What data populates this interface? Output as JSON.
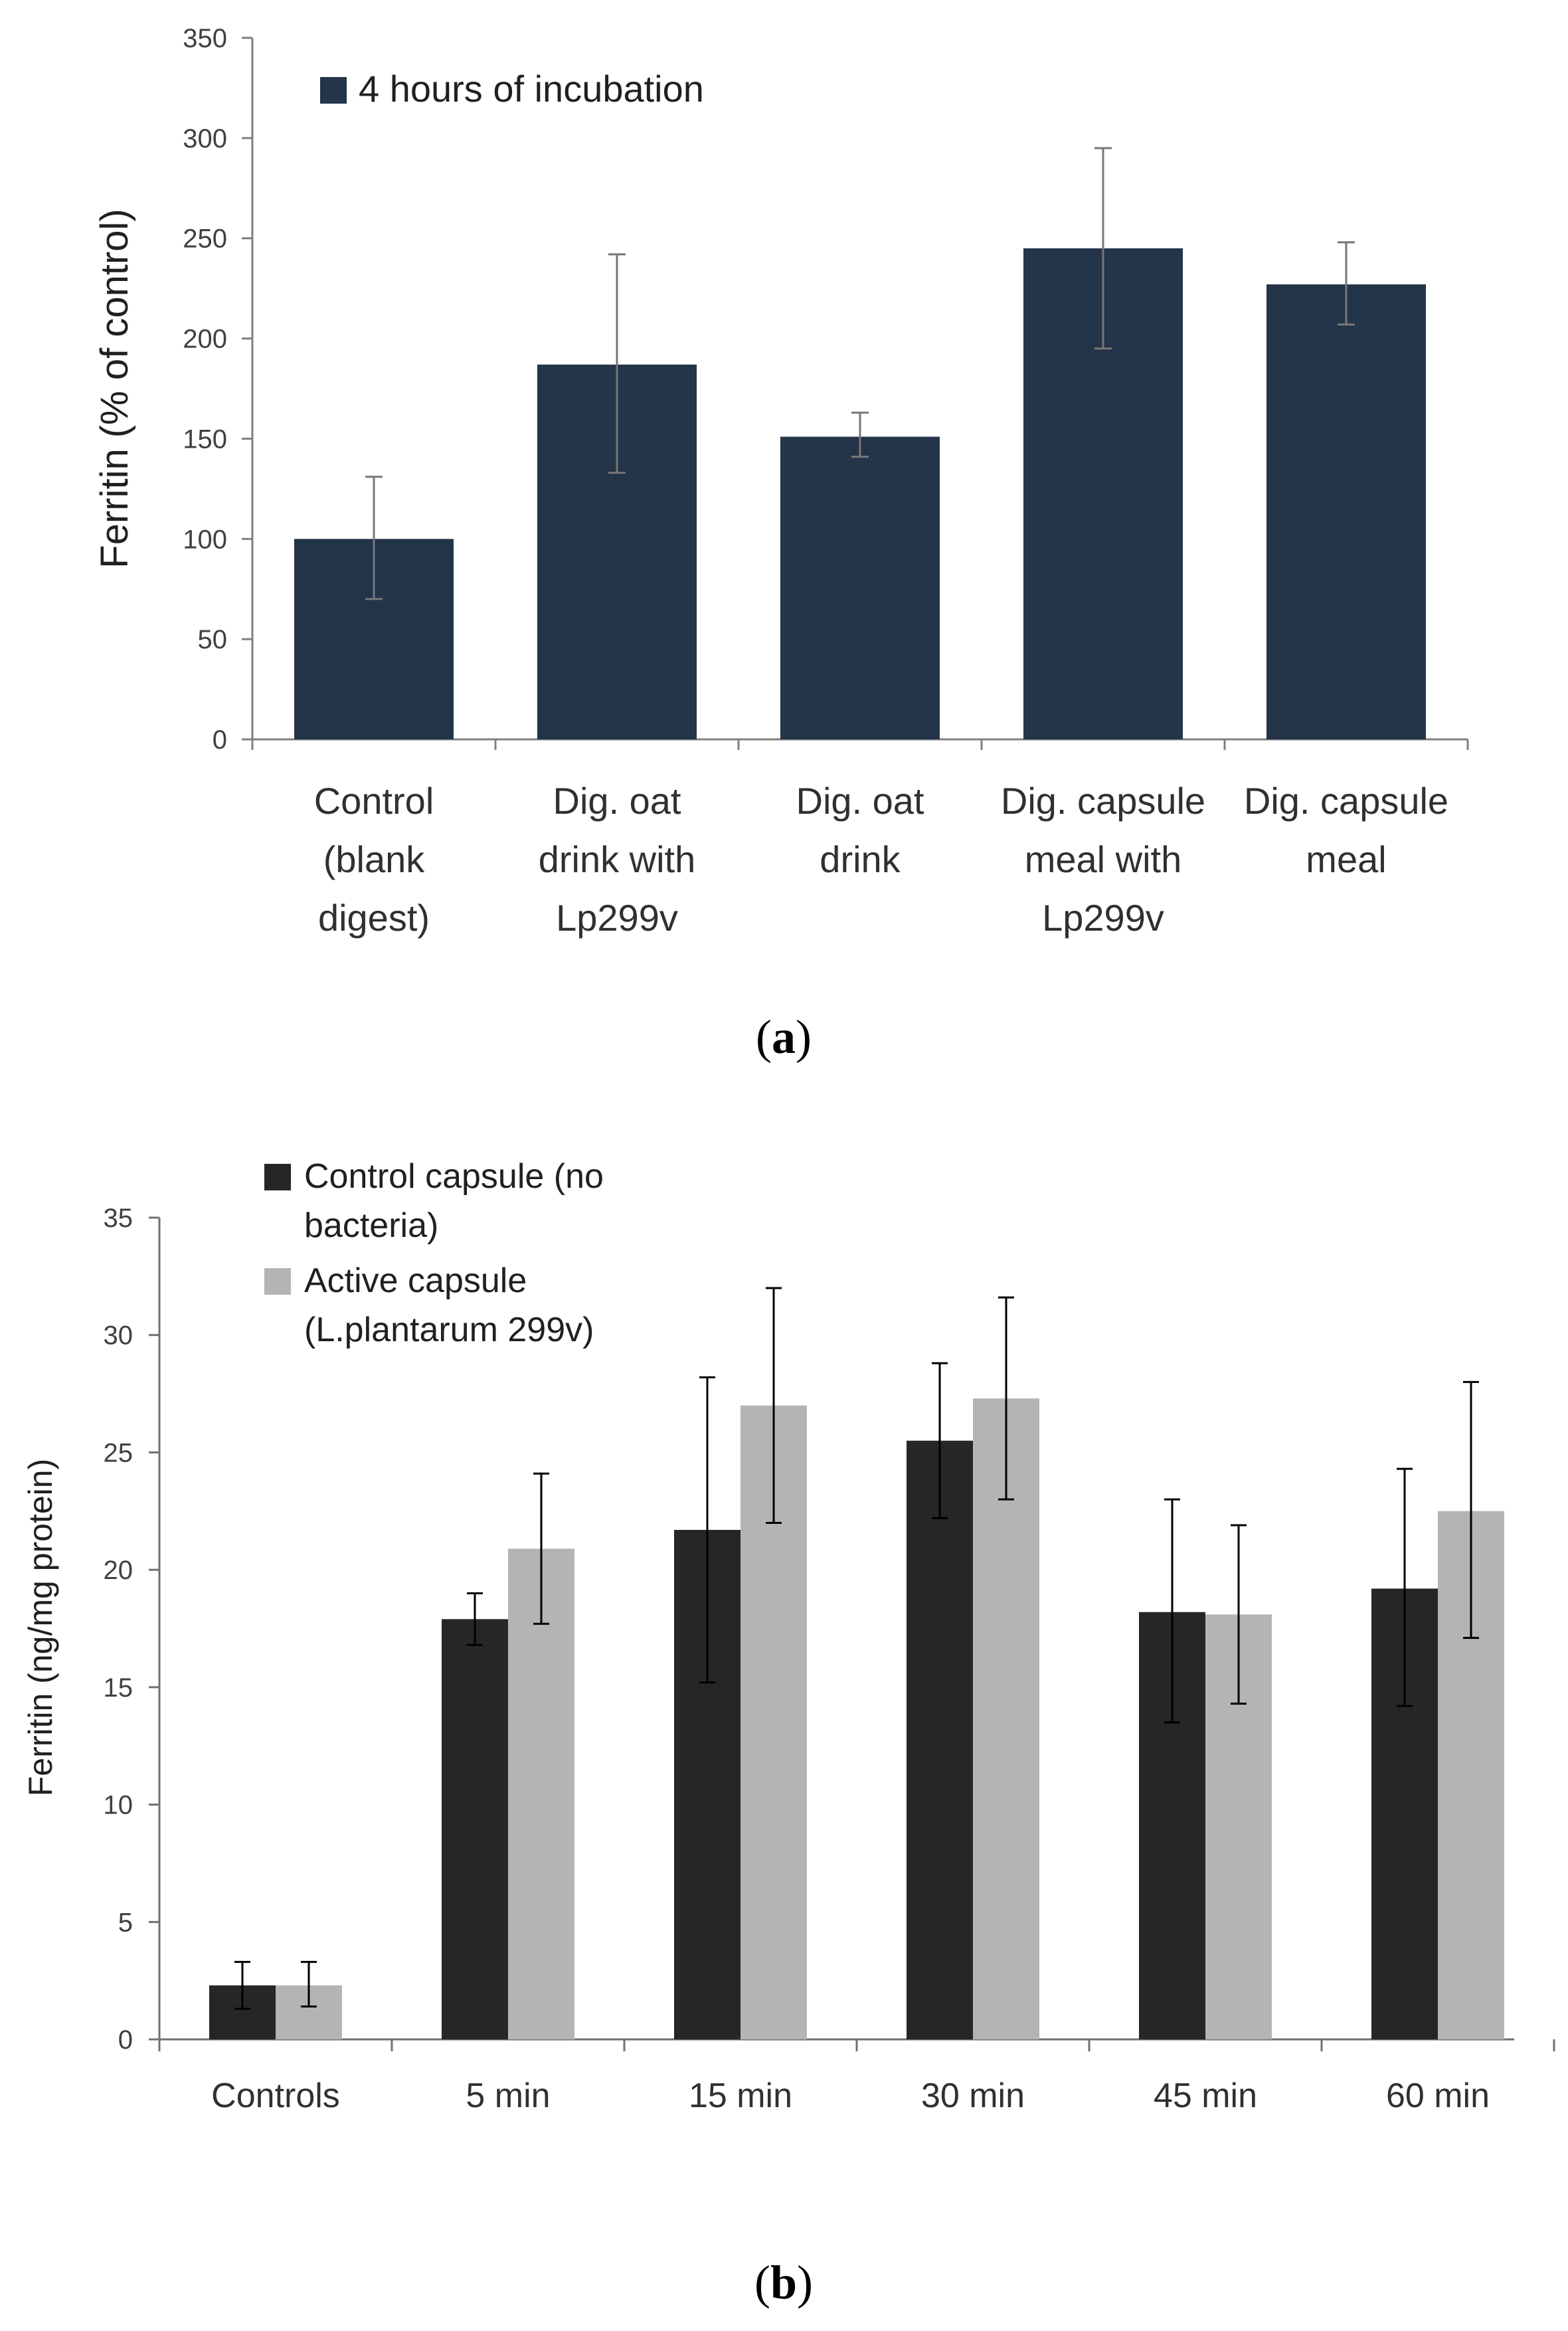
{
  "chart_data": [
    {
      "type": "bar",
      "panel_label": "a",
      "ylabel": "Ferritin (% of control)",
      "xlabel": "",
      "ylim": [
        0,
        350
      ],
      "yticks": [
        0,
        50,
        100,
        150,
        200,
        250,
        300,
        350
      ],
      "legend_position": "top-left",
      "categories": [
        [
          "Control",
          "(blank",
          "digest)"
        ],
        [
          "Dig. oat",
          "drink with",
          "Lp299v"
        ],
        [
          "Dig. oat",
          "drink"
        ],
        [
          "Dig. capsule",
          "meal with",
          "Lp299v"
        ],
        [
          "Dig. capsule",
          "meal"
        ]
      ],
      "series": [
        {
          "name": "4 hours of incubation",
          "color": "#243449",
          "values": [
            100,
            187,
            151,
            245,
            227
          ],
          "error_low": [
            70,
            133,
            141,
            195,
            207
          ],
          "error_high": [
            131,
            242,
            163,
            295,
            248
          ]
        }
      ]
    },
    {
      "type": "bar",
      "panel_label": "b",
      "ylabel": "Ferritin (ng/mg protein)",
      "xlabel": "",
      "ylim": [
        0,
        35
      ],
      "yticks": [
        0,
        5,
        10,
        15,
        20,
        25,
        30,
        35
      ],
      "legend_position": "top-left",
      "categories": [
        "Controls",
        "5 min",
        "15 min",
        "30 min",
        "45 min",
        "60 min"
      ],
      "series": [
        {
          "name": [
            "Control capsule (no",
            "bacteria)"
          ],
          "color": "#262626",
          "values": [
            2.3,
            17.9,
            21.7,
            25.5,
            18.2,
            19.2
          ],
          "error_low": [
            1.3,
            16.8,
            15.2,
            22.2,
            13.5,
            14.2
          ],
          "error_high": [
            3.3,
            19.0,
            28.2,
            28.8,
            23.0,
            24.3
          ]
        },
        {
          "name": [
            "Active capsule",
            "(L.plantarum 299v)"
          ],
          "color": "#b4b4b4",
          "values": [
            2.3,
            20.9,
            27.0,
            27.3,
            18.1,
            22.5
          ],
          "error_low": [
            1.4,
            17.7,
            22.0,
            23.0,
            14.3,
            17.1
          ],
          "error_high": [
            3.3,
            24.1,
            32.0,
            31.6,
            21.9,
            28.0
          ]
        }
      ]
    }
  ]
}
